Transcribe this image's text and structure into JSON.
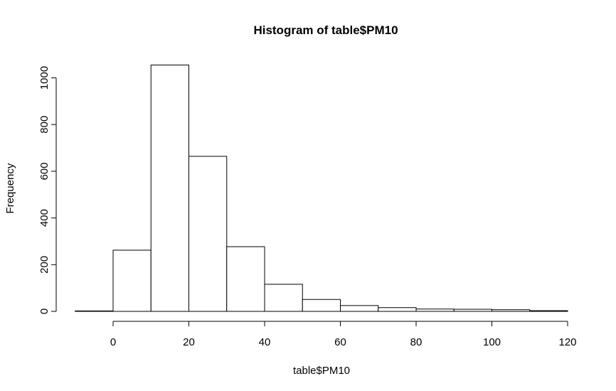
{
  "chart_data": {
    "type": "bar",
    "title": "Histogram of table$PM10",
    "xlabel": "table$PM10",
    "ylabel": "Frequency",
    "bins": [
      {
        "start": -10,
        "end": 0,
        "count": 2
      },
      {
        "start": 0,
        "end": 10,
        "count": 262
      },
      {
        "start": 10,
        "end": 20,
        "count": 1055
      },
      {
        "start": 20,
        "end": 30,
        "count": 664
      },
      {
        "start": 30,
        "end": 40,
        "count": 277
      },
      {
        "start": 40,
        "end": 50,
        "count": 116
      },
      {
        "start": 50,
        "end": 60,
        "count": 51
      },
      {
        "start": 60,
        "end": 70,
        "count": 25
      },
      {
        "start": 70,
        "end": 80,
        "count": 16
      },
      {
        "start": 80,
        "end": 90,
        "count": 10
      },
      {
        "start": 90,
        "end": 100,
        "count": 9
      },
      {
        "start": 100,
        "end": 110,
        "count": 7
      },
      {
        "start": 110,
        "end": 120,
        "count": 3
      }
    ],
    "x_ticks": [
      0,
      20,
      40,
      60,
      80,
      100,
      120
    ],
    "y_ticks": [
      0,
      200,
      400,
      600,
      800,
      1000
    ],
    "xlim": [
      -10,
      120
    ],
    "ylim": [
      0,
      1055
    ],
    "grid": false
  }
}
